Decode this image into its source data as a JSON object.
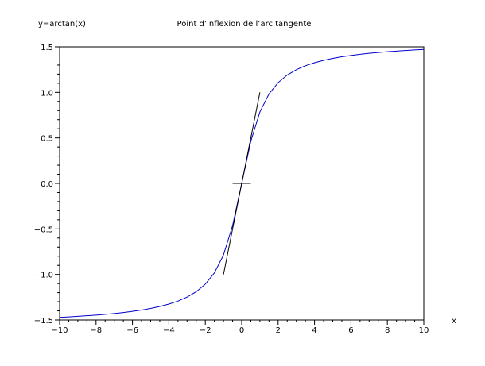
{
  "chart_data": {
    "type": "line",
    "title": "Point d’inflexion de l’arc tangente",
    "ylabel": "y=arctan(x)",
    "xlabel": "x",
    "xlim": [
      -10,
      10
    ],
    "ylim": [
      -1.5,
      1.5
    ],
    "x_ticks": [
      -10,
      -8,
      -6,
      -4,
      -2,
      0,
      2,
      4,
      6,
      8,
      10
    ],
    "x_tick_labels": [
      "−10",
      "−8",
      "−6",
      "−4",
      "−2",
      "0",
      "2",
      "4",
      "6",
      "8",
      "10"
    ],
    "y_ticks": [
      -1.5,
      -1.0,
      -0.5,
      0.0,
      0.5,
      1.0,
      1.5
    ],
    "y_tick_labels": [
      "−1.5",
      "−1.0",
      "−0.5",
      "0.0",
      "0.5",
      "1.0",
      "1.5"
    ],
    "grid": false,
    "series": [
      {
        "color": "#0000cc",
        "x": [
          -10,
          -9.5,
          -9,
          -8.5,
          -8,
          -7.5,
          -7,
          -6.5,
          -6,
          -5.5,
          -5,
          -4.5,
          -4,
          -3.5,
          -3,
          -2.5,
          -2,
          -1.5,
          -1,
          -0.5,
          0,
          0.5,
          1,
          1.5,
          2,
          2.5,
          3,
          3.5,
          4,
          4.5,
          5,
          5.5,
          6,
          6.5,
          7,
          7.5,
          8,
          8.5,
          9,
          9.5,
          10
        ],
        "y": [
          -1.4711,
          -1.4659,
          -1.4601,
          -1.4535,
          -1.4464,
          -1.4382,
          -1.4289,
          -1.4181,
          -1.4056,
          -1.3909,
          -1.3734,
          -1.3521,
          -1.3258,
          -1.2925,
          -1.249,
          -1.1903,
          -1.1071,
          -0.9828,
          -0.7854,
          -0.4636,
          0.0,
          0.4636,
          0.7854,
          0.9828,
          1.1071,
          1.1903,
          1.249,
          1.2925,
          1.3258,
          1.3521,
          1.3734,
          1.3909,
          1.4056,
          1.4181,
          1.4289,
          1.4382,
          1.4464,
          1.4535,
          1.4601,
          1.4659,
          1.4711
        ]
      },
      {
        "color": "#000000",
        "x": [
          -1,
          1
        ],
        "y": [
          -1,
          1
        ]
      },
      {
        "color": "#000000",
        "x": [
          -0.5,
          0.5
        ],
        "y": [
          0,
          0
        ]
      }
    ]
  }
}
